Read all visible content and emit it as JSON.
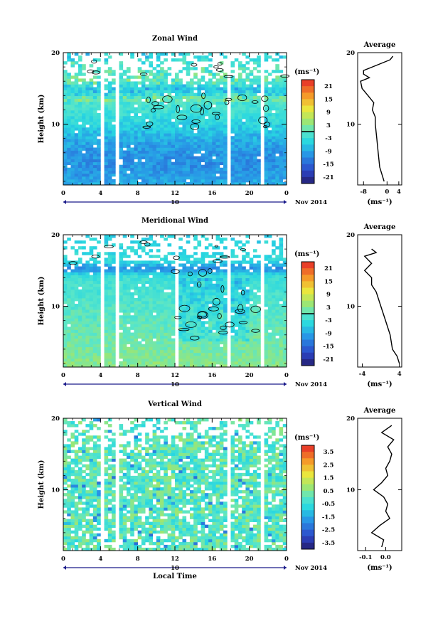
{
  "chart_data": [
    {
      "type": "heatmap",
      "title": "Zonal Wind",
      "ylabel": "Height (km)",
      "xlabel": "",
      "date_label": "Nov 2014",
      "day_label": "10",
      "x_ticks": [
        "0",
        "4",
        "8",
        "12",
        "16",
        "20",
        "0"
      ],
      "y_ticks": [
        "20",
        "10"
      ],
      "xlim": [
        0,
        24
      ],
      "ylim": [
        1.5,
        20
      ],
      "units_label": "(ms⁻¹)",
      "colorbar_ticks": [
        "21",
        "15",
        "9",
        "3",
        "-3",
        "-9",
        "-15",
        "-21"
      ],
      "colorbar_range": [
        -24,
        24
      ],
      "zero_contour": true,
      "data_gaps_hours": [
        [
          4.1,
          4.6
        ],
        [
          5.6,
          6.0
        ],
        [
          17.5,
          17.8
        ],
        [
          21.3,
          21.7
        ]
      ],
      "average": {
        "title": "Average",
        "xlabel": "(ms⁻¹)",
        "x_ticks": [
          "-8",
          "0",
          "4"
        ],
        "xlim": [
          -10,
          5
        ],
        "y_ticks": [
          "20",
          "10"
        ],
        "heights": [
          2,
          4,
          6,
          8,
          10,
          11,
          12,
          13,
          14,
          15,
          16,
          16.5,
          17,
          17.5,
          18,
          18.5,
          19,
          19.5
        ],
        "values": [
          -1,
          -2.5,
          -3,
          -3.5,
          -4,
          -4,
          -5,
          -4.5,
          -6.5,
          -8.5,
          -9,
          -6,
          -8,
          -8,
          -5,
          -2,
          1,
          2
        ]
      }
    },
    {
      "type": "heatmap",
      "title": "Meridional Wind",
      "ylabel": "Height (km)",
      "xlabel": "",
      "date_label": "Nov 2014",
      "day_label": "10",
      "x_ticks": [
        "0",
        "4",
        "8",
        "12",
        "16",
        "20",
        "0"
      ],
      "y_ticks": [
        "20",
        "10"
      ],
      "xlim": [
        0,
        24
      ],
      "ylim": [
        1.5,
        20
      ],
      "units_label": "(ms⁻¹)",
      "colorbar_ticks": [
        "21",
        "15",
        "9",
        "3",
        "-3",
        "-9",
        "-15",
        "-21"
      ],
      "colorbar_range": [
        -24,
        24
      ],
      "zero_contour": true,
      "data_gaps_hours": [
        [
          4.1,
          4.6
        ],
        [
          5.6,
          6.0
        ],
        [
          12.1,
          12.4
        ],
        [
          17.5,
          17.8
        ],
        [
          21.3,
          21.7
        ]
      ],
      "average": {
        "title": "Average",
        "xlabel": "(ms⁻¹)",
        "x_ticks": [
          "-4",
          "4"
        ],
        "xlim": [
          -5,
          4.5
        ],
        "y_ticks": [
          "20",
          "10"
        ],
        "heights": [
          2,
          3,
          4,
          6,
          8,
          10,
          12,
          13,
          14,
          15,
          16,
          17,
          17.5,
          18
        ],
        "values": [
          4,
          3.5,
          2.5,
          2,
          1,
          0,
          -1,
          -2,
          -2,
          -3.5,
          -2,
          -3.5,
          -1,
          -2
        ]
      }
    },
    {
      "type": "heatmap",
      "title": "Vertical Wind",
      "ylabel": "Height (km)",
      "xlabel": "Local Time",
      "date_label": "Nov 2014",
      "day_label": "10",
      "x_ticks": [
        "0",
        "4",
        "8",
        "12",
        "16",
        "20",
        "0"
      ],
      "y_ticks": [
        "20",
        "10"
      ],
      "xlim": [
        0,
        24
      ],
      "ylim": [
        1.5,
        20
      ],
      "units_label": "(ms⁻¹)",
      "colorbar_ticks": [
        "3.5",
        "2.5",
        "1.5",
        "0.5",
        "-0.5",
        "-1.5",
        "-2.5",
        "-3.5"
      ],
      "colorbar_range": [
        -4,
        4
      ],
      "zero_contour": false,
      "data_gaps_hours": [
        [
          4.1,
          4.6
        ],
        [
          5.6,
          6.0
        ],
        [
          17.5,
          17.8
        ],
        [
          21.3,
          21.7
        ]
      ],
      "average": {
        "title": "Average",
        "xlabel": "(ms⁻¹)",
        "x_ticks": [
          "-0.1",
          "0.0"
        ],
        "xlim": [
          -0.14,
          0.08
        ],
        "y_ticks": [
          "20",
          "10"
        ],
        "heights": [
          2,
          3,
          4,
          5,
          6,
          7,
          8,
          9,
          10,
          11,
          12,
          13,
          14,
          15,
          16,
          17,
          18,
          19
        ],
        "values": [
          -0.02,
          -0.01,
          -0.07,
          -0.03,
          0.02,
          0.0,
          0.01,
          -0.01,
          -0.06,
          -0.02,
          0.01,
          0.0,
          0.02,
          0.03,
          0.01,
          0.04,
          -0.02,
          0.03
        ]
      }
    }
  ]
}
